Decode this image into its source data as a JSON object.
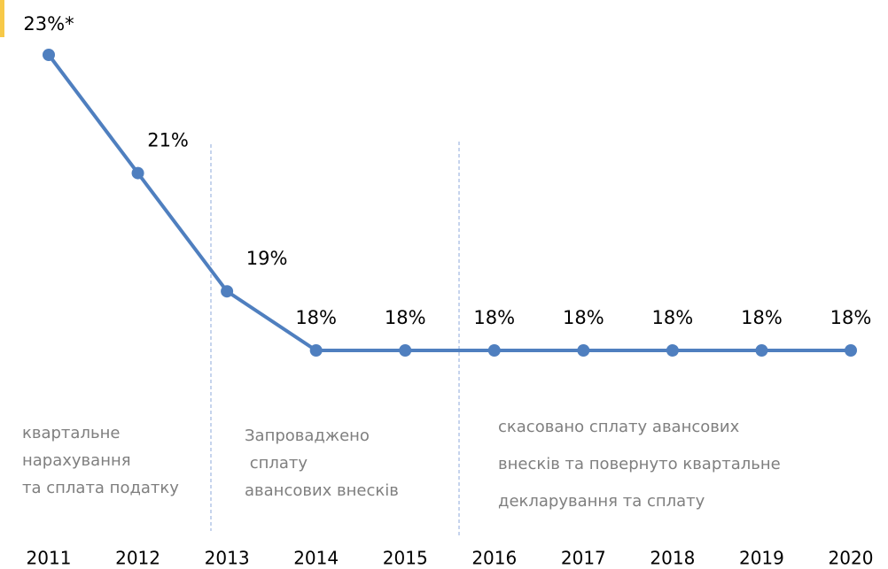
{
  "chart_data": {
    "type": "line",
    "categories": [
      "2011",
      "2012",
      "2013",
      "2014",
      "2015",
      "2016",
      "2017",
      "2018",
      "2019",
      "2020"
    ],
    "series": [
      {
        "color": "#4f7fbf",
        "values": [
          23,
          21,
          19,
          18,
          18,
          18,
          18,
          18,
          18,
          18
        ],
        "value_labels": [
          "23%*",
          "21%",
          "19%",
          "18%",
          "18%",
          "18%",
          "18%",
          "18%",
          "18%",
          "18%"
        ]
      }
    ],
    "annotations": [
      [
        "квартальне",
        "нарахування",
        "та сплата податку"
      ],
      [
        "Запроваджено",
        " сплату",
        "авансових внесків"
      ],
      [
        "скасовано сплату авансових",
        "внесків та повернуто квартальне",
        "декларування та сплату"
      ]
    ]
  }
}
